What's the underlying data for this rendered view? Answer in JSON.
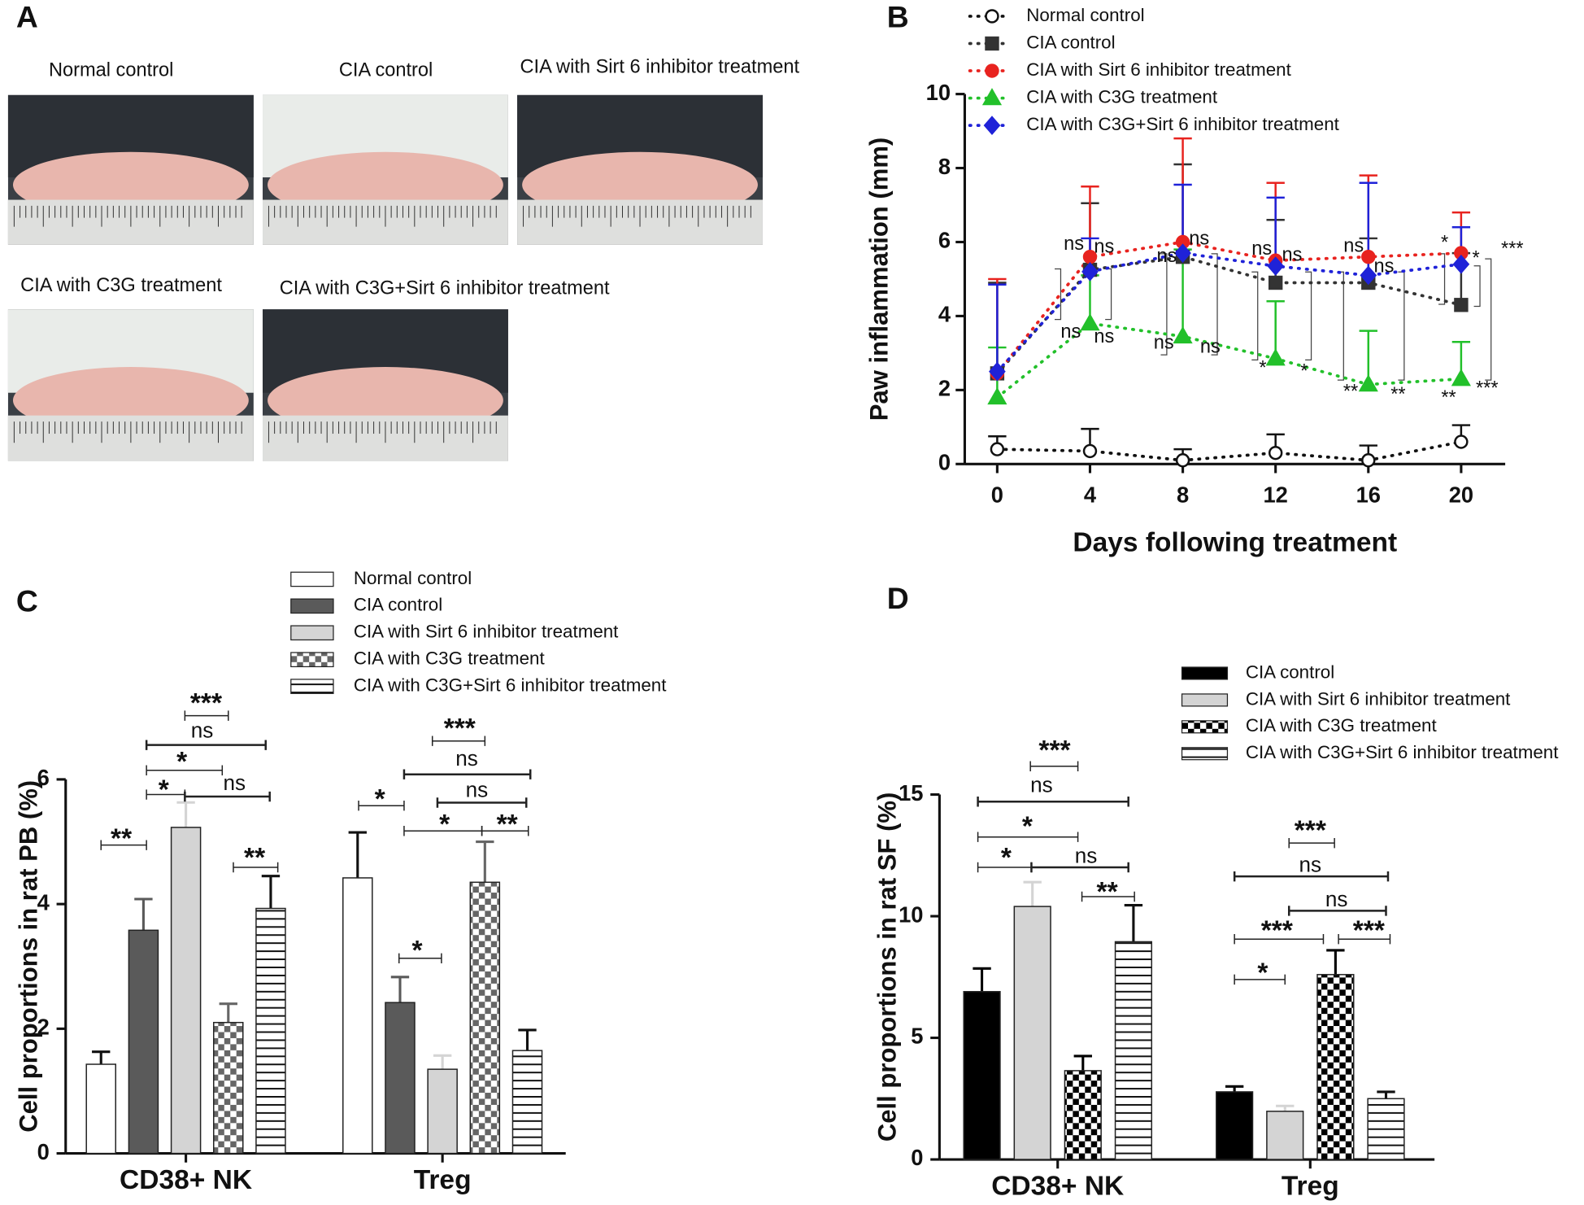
{
  "photos": {
    "label": "A",
    "captions": [
      "Normal control",
      "CIA control",
      "CIA with Sirt 6 inhibitor treatment",
      "CIA with C3G treatment",
      "CIA with C3G+Sirt 6 inhibitor treatment"
    ]
  },
  "chart_data": [
    {
      "type": "line",
      "label": "B",
      "x_label": "Days following treatment",
      "y_label": "Paw inflammation (mm)",
      "x": [
        0,
        4,
        8,
        12,
        16,
        20
      ],
      "xlim": [
        -1.4,
        21.9
      ],
      "xticks": [
        0,
        4,
        8,
        12,
        16,
        20
      ],
      "ylim": [
        0,
        10
      ],
      "yticks": [
        0,
        2,
        4,
        6,
        8,
        10
      ],
      "series": [
        {
          "name": "Normal control",
          "color": "#111111",
          "marker": "open-circle",
          "values": [
            0.4,
            0.35,
            0.1,
            0.3,
            0.1,
            0.6
          ],
          "errors": [
            0.35,
            0.6,
            0.3,
            0.5,
            0.4,
            0.45
          ]
        },
        {
          "name": "CIA control",
          "color": "#333333",
          "marker": "square",
          "values": [
            2.45,
            5.25,
            5.6,
            4.9,
            4.9,
            4.3
          ],
          "errors": [
            2.45,
            1.8,
            2.5,
            1.7,
            1.2,
            1.4
          ]
        },
        {
          "name": "CIA with Sirt 6 inhibitor treatment",
          "color": "#e8231f",
          "marker": "circle",
          "values": [
            2.45,
            5.6,
            6.0,
            5.5,
            5.6,
            5.7
          ],
          "errors": [
            2.55,
            1.9,
            2.8,
            2.1,
            2.2,
            1.1
          ]
        },
        {
          "name": "CIA with C3G treatment",
          "color": "#22c02a",
          "marker": "triangle",
          "values": [
            1.8,
            3.8,
            3.45,
            2.85,
            2.15,
            2.3
          ],
          "errors": [
            1.35,
            1.3,
            2.35,
            1.55,
            1.45,
            1.0
          ]
        },
        {
          "name": "CIA with C3G+Sirt 6 inhibitor treatment",
          "color": "#1f22d8",
          "marker": "diamond",
          "values": [
            2.5,
            5.2,
            5.7,
            5.35,
            5.1,
            5.4
          ],
          "errors": [
            2.35,
            0.9,
            1.85,
            1.85,
            2.5,
            1.0
          ]
        }
      ],
      "annotations": [
        "ns",
        "ns",
        "ns",
        "ns",
        "ns",
        "ns",
        "ns",
        "ns",
        "ns",
        "ns",
        "*",
        "*",
        "ns",
        "ns",
        "**",
        "**",
        "*",
        "*",
        "***",
        "**",
        "***"
      ]
    },
    {
      "type": "bar",
      "label": "C",
      "y_label": "Cell proportions in rat PB (%)",
      "categories": [
        "CD38+ NK",
        "Treg"
      ],
      "ylim": [
        0,
        6
      ],
      "yticks": [
        0,
        2,
        4,
        6
      ],
      "series": [
        {
          "name": "Normal control",
          "color": "#ffffff",
          "values": [
            1.43,
            4.42
          ],
          "errors": [
            0.2,
            0.73
          ]
        },
        {
          "name": "CIA control",
          "color": "#5a5a5a",
          "values": [
            3.58,
            2.42
          ],
          "errors": [
            0.5,
            0.41
          ]
        },
        {
          "name": "CIA with Sirt 6 inhibitor treatment",
          "color": "#d4d4d4",
          "values": [
            5.23,
            1.35
          ],
          "errors": [
            0.4,
            0.22
          ]
        },
        {
          "name": "CIA with C3G treatment",
          "color": "#666666",
          "pattern": "checker",
          "values": [
            2.1,
            4.35
          ],
          "errors": [
            0.3,
            0.65
          ]
        },
        {
          "name": "CIA with C3G+Sirt 6 inhibitor treatment",
          "color": "#111111",
          "pattern": "hlines",
          "values": [
            3.93,
            1.65
          ],
          "errors": [
            0.52,
            0.33
          ]
        }
      ],
      "annotations": [
        "**",
        "*",
        "ns",
        "*",
        "ns",
        "***",
        "**",
        "*",
        "*",
        "*",
        "**",
        "ns",
        "ns",
        "***"
      ]
    },
    {
      "type": "bar",
      "label": "D",
      "y_label": "Cell proportions in rat SF (%)",
      "categories": [
        "CD38+ NK",
        "Treg"
      ],
      "ylim": [
        0,
        15
      ],
      "yticks": [
        0,
        5,
        10,
        15
      ],
      "series": [
        {
          "name": "CIA control",
          "color": "#000000",
          "values": [
            6.9,
            2.78
          ],
          "errors": [
            0.95,
            0.22
          ]
        },
        {
          "name": "CIA with Sirt 6 inhibitor treatment",
          "color": "#d4d4d4",
          "values": [
            10.4,
            1.98
          ],
          "errors": [
            1.0,
            0.22
          ]
        },
        {
          "name": "CIA with C3G treatment",
          "color": "#000000",
          "pattern": "checker",
          "values": [
            3.65,
            7.6
          ],
          "errors": [
            0.6,
            1.0
          ]
        },
        {
          "name": "CIA with C3G+Sirt 6 inhibitor treatment",
          "color": "#111111",
          "pattern": "hlines",
          "values": [
            8.95,
            2.5
          ],
          "errors": [
            1.5,
            0.28
          ]
        }
      ],
      "annotations": [
        "***",
        "ns",
        "*",
        "*",
        "ns",
        "**",
        "***",
        "ns",
        "ns",
        "***",
        "***",
        "*"
      ]
    }
  ]
}
